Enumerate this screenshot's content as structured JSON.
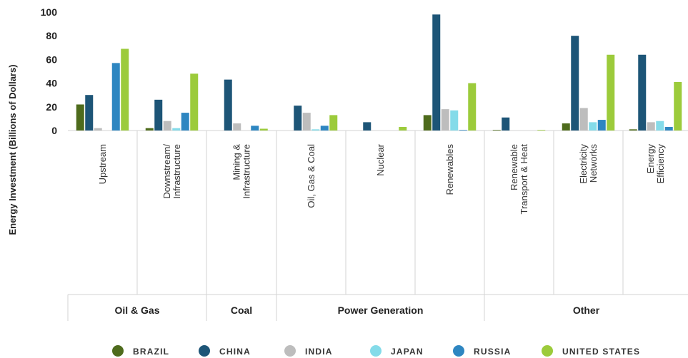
{
  "chart_data": {
    "type": "bar",
    "ylabel": "Energy Investment (Billions of Dollars)",
    "ylim": [
      0,
      100
    ],
    "yticks": [
      0,
      20,
      40,
      60,
      80,
      100
    ],
    "grid": false,
    "legend_position": "bottom",
    "categories": [
      [
        "Upstream"
      ],
      [
        "Downstream/",
        "Infrastructure"
      ],
      [
        "Mining &",
        "Infrastructure"
      ],
      [
        "Oil, Gas & Coal"
      ],
      [
        "Nuclear"
      ],
      [
        "Renewables"
      ],
      [
        "Renewable",
        "Transport & Heat"
      ],
      [
        "Electricity",
        "Networks"
      ],
      [
        "Energy",
        "Efficiency"
      ]
    ],
    "groups": [
      {
        "label": "Oil & Gas",
        "start": 0,
        "end": 1
      },
      {
        "label": "Coal",
        "start": 2,
        "end": 2
      },
      {
        "label": "Power Generation",
        "start": 3,
        "end": 5
      },
      {
        "label": "Other",
        "start": 6,
        "end": 8
      }
    ],
    "series": [
      {
        "name": "BRAZIL",
        "color": "#4e6b1c",
        "values": [
          22,
          2,
          0,
          0,
          0,
          13,
          0.5,
          6,
          1
        ]
      },
      {
        "name": "CHINA",
        "color": "#1d5577",
        "values": [
          30,
          26,
          43,
          21,
          7,
          98,
          11,
          80,
          64
        ]
      },
      {
        "name": "INDIA",
        "color": "#bdbdbd",
        "values": [
          2,
          8,
          6,
          15,
          0,
          18,
          0,
          19,
          7
        ]
      },
      {
        "name": "JAPAN",
        "color": "#84dbe9",
        "values": [
          0,
          2,
          0,
          1,
          0,
          17,
          0,
          7,
          8
        ]
      },
      {
        "name": "RUSSIA",
        "color": "#2e86c1",
        "values": [
          57,
          15,
          4,
          4,
          0,
          0.5,
          0,
          9,
          3
        ]
      },
      {
        "name": "UNITED STATES",
        "color": "#9ccb3b",
        "values": [
          69,
          48,
          1.5,
          13,
          3,
          40,
          0.5,
          64,
          41
        ]
      }
    ]
  }
}
